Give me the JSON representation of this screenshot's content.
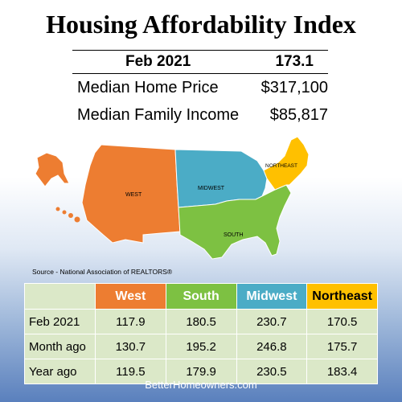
{
  "title": "Housing Affordability Index",
  "summary": {
    "period": "Feb 2021",
    "index": "173.1",
    "rows": [
      {
        "label": "Median Home Price",
        "value": "$317,100"
      },
      {
        "label": "Median Family Income",
        "value": "$85,817"
      }
    ]
  },
  "map": {
    "regions": {
      "west": "WEST",
      "midwest": "MIDWEST",
      "south": "SOUTH",
      "northeast": "NORTHEAST"
    },
    "colors": {
      "west": "#ed7d31",
      "midwest": "#4bacc6",
      "south": "#7dc142",
      "northeast": "#ffc000"
    }
  },
  "source": "Source - National Association of REALTORS®",
  "table": {
    "columns": [
      {
        "label": "West",
        "color": "#ed7d31",
        "text_color": "#ffffff"
      },
      {
        "label": "South",
        "color": "#7dc142",
        "text_color": "#ffffff"
      },
      {
        "label": "Midwest",
        "color": "#4bacc6",
        "text_color": "#ffffff"
      },
      {
        "label": "Northeast",
        "color": "#ffc000",
        "text_color": "#000000"
      }
    ],
    "rows": [
      {
        "label": "Feb 2021",
        "values": [
          "117.9",
          "180.5",
          "230.7",
          "170.5"
        ]
      },
      {
        "label": "Month ago",
        "values": [
          "130.7",
          "195.2",
          "246.8",
          "175.7"
        ]
      },
      {
        "label": "Year ago",
        "values": [
          "119.5",
          "179.9",
          "230.5",
          "183.4"
        ]
      }
    ]
  },
  "footer": "BetterHomeowners.com"
}
